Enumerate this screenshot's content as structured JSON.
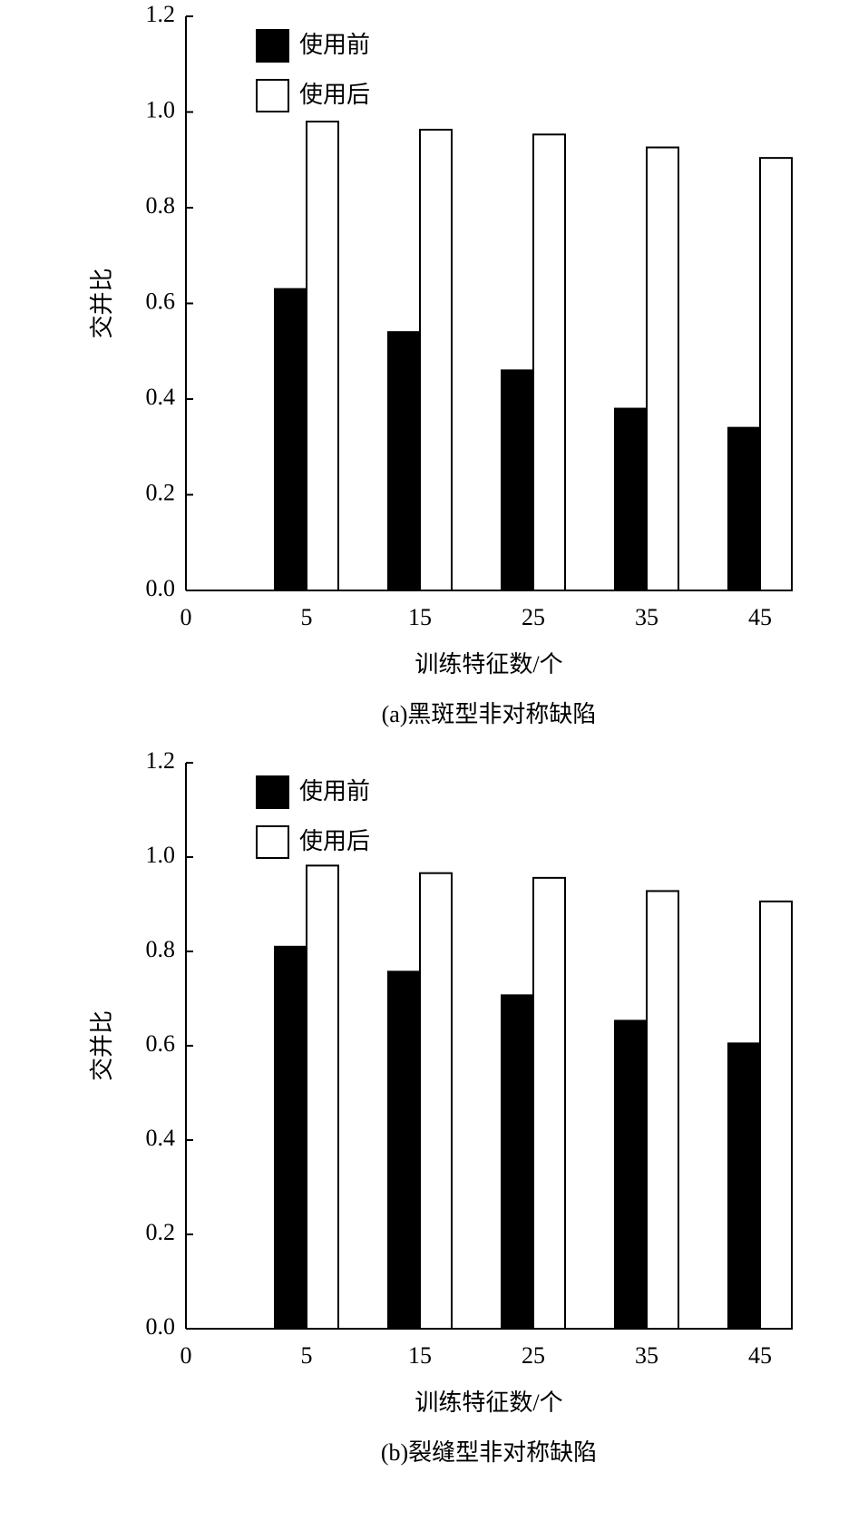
{
  "chart_data": [
    {
      "type": "bar",
      "title": "(a)黑斑型非对称缺陷",
      "xlabel": "训练特征数/个",
      "ylabel": "交并比",
      "categories": [
        "0",
        "5",
        "15",
        "25",
        "35",
        "45"
      ],
      "series": [
        {
          "name": "使用前",
          "color": "#000000",
          "values": [
            null,
            0.63,
            0.54,
            0.46,
            0.38,
            0.34
          ]
        },
        {
          "name": "使用后",
          "color": "#ffffff",
          "values": [
            null,
            0.98,
            0.963,
            0.953,
            0.926,
            0.904
          ]
        }
      ],
      "ylim": [
        0,
        1.2
      ],
      "yticks": [
        {
          "value": 0,
          "label": "0.0"
        },
        {
          "value": 0.2,
          "label": "0.2"
        },
        {
          "value": 0.4,
          "label": "0.4"
        },
        {
          "value": 0.6,
          "label": "0.6"
        },
        {
          "value": 0.8,
          "label": "0.8"
        },
        {
          "value": 1,
          "label": "1.0"
        },
        {
          "value": 1.2,
          "label": "1.2"
        }
      ],
      "legend": "upper left"
    },
    {
      "type": "bar",
      "title": "(b)裂缝型非对称缺陷",
      "xlabel": "训练特征数/个",
      "ylabel": "交并比",
      "categories": [
        "0",
        "5",
        "15",
        "25",
        "35",
        "45"
      ],
      "series": [
        {
          "name": "使用前",
          "color": "#000000",
          "values": [
            null,
            0.81,
            0.757,
            0.707,
            0.653,
            0.605
          ]
        },
        {
          "name": "使用后",
          "color": "#ffffff",
          "values": [
            null,
            0.982,
            0.966,
            0.956,
            0.928,
            0.906
          ]
        }
      ],
      "ylim": [
        0,
        1.2
      ],
      "yticks": [
        {
          "value": 0,
          "label": "0.0"
        },
        {
          "value": 0.2,
          "label": "0.2"
        },
        {
          "value": 0.4,
          "label": "0.4"
        },
        {
          "value": 0.6,
          "label": "0.6"
        },
        {
          "value": 0.8,
          "label": "0.8"
        },
        {
          "value": 1,
          "label": "1.0"
        },
        {
          "value": 1.2,
          "label": "1.2"
        }
      ],
      "legend": "upper left"
    }
  ]
}
